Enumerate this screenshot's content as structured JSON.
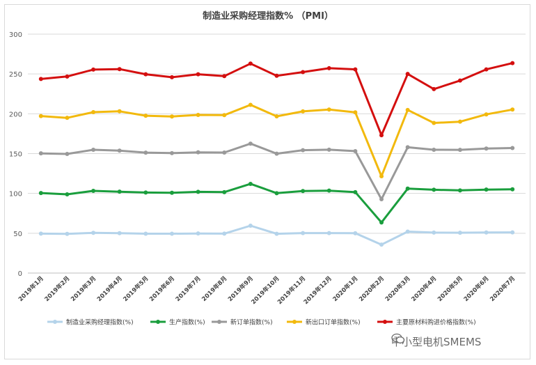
{
  "chart_data": {
    "type": "line",
    "title": "制造业采购经理指数% （PMI）",
    "xlabel": "",
    "ylabel": "",
    "ylim": [
      0,
      300
    ],
    "yticks": [
      0,
      50,
      100,
      150,
      200,
      250,
      300
    ],
    "grid": true,
    "legend_position": "bottom",
    "categories": [
      "2019年1月",
      "2019年2月",
      "2019年3月",
      "2019年4月",
      "2019年5月",
      "2019年6月",
      "2019年7月",
      "2019年8月",
      "2019年9月",
      "2019年10月",
      "2019年11月",
      "2019年12月",
      "2020年1月",
      "2020年2月",
      "2020年3月",
      "2020年4月",
      "2020年5月",
      "2020年6月",
      "2020年7月"
    ],
    "series": [
      {
        "name": "制造业采购经理指数(%)",
        "color": "#b4d3ea",
        "values": [
          49.5,
          49.2,
          50.5,
          50.1,
          49.4,
          49.4,
          49.7,
          49.5,
          59.5,
          49.3,
          50.2,
          50.2,
          50.0,
          35.7,
          52.0,
          50.8,
          50.6,
          50.9,
          51.1
        ]
      },
      {
        "name": "生产指数(%)",
        "color": "#1a9e3d",
        "values": [
          100.5,
          98.8,
          103.2,
          102.2,
          101.1,
          100.8,
          102.0,
          101.6,
          112.0,
          100.3,
          103.0,
          103.5,
          101.6,
          63.5,
          106.0,
          104.6,
          103.8,
          104.8,
          105.2
        ]
      },
      {
        "name": "新订单指数(%)",
        "color": "#999999",
        "values": [
          150.3,
          149.6,
          154.8,
          153.7,
          151.2,
          150.6,
          151.6,
          151.3,
          162.5,
          149.9,
          154.3,
          154.9,
          153.1,
          92.7,
          158.0,
          154.8,
          154.7,
          156.3,
          157.0
        ]
      },
      {
        "name": "新出口订单指数(%)",
        "color": "#f2b90d",
        "values": [
          197.1,
          194.9,
          202.0,
          203.1,
          197.6,
          196.6,
          198.5,
          198.3,
          211.2,
          196.8,
          203.0,
          205.3,
          201.8,
          121.6,
          204.8,
          188.5,
          190.1,
          199.2,
          205.3
        ]
      },
      {
        "name": "主要原材料购进价格指数(%)",
        "color": "#d40f0f",
        "values": [
          243.7,
          246.8,
          255.5,
          256.1,
          249.6,
          245.9,
          249.6,
          247.3,
          263.0,
          247.7,
          252.3,
          257.2,
          255.7,
          173.1,
          250.0,
          231.0,
          241.7,
          255.7,
          263.6
        ]
      }
    ]
  },
  "watermark": {
    "text": "中小型电机SMEMS",
    "icon": "wechat-icon"
  }
}
